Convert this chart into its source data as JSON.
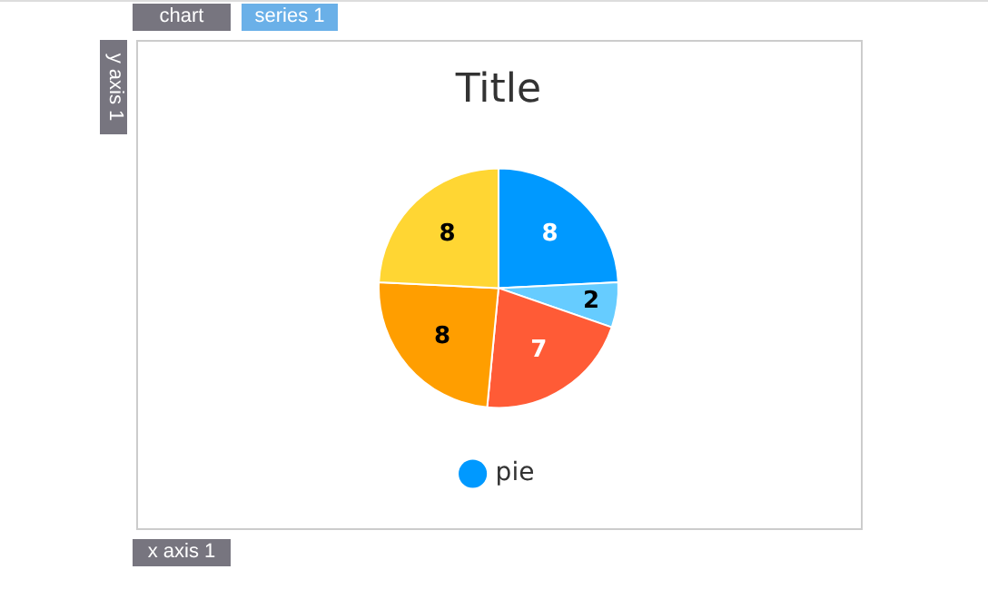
{
  "chart_data": {
    "type": "pie",
    "title": "Title",
    "categories": [
      null,
      null,
      null,
      null,
      null
    ],
    "series": [
      {
        "name": "pie",
        "color": "#0099ff",
        "values": [
          8,
          2,
          7,
          8,
          8
        ],
        "colors": [
          "#0099ff",
          "#66ccff",
          "#ff5b36",
          "#ff9e00",
          "#ffd633"
        ]
      }
    ],
    "data_labels": true,
    "legend": "bottom",
    "annotations": [
      "chart",
      "series 1",
      "y axis 1",
      "x axis 1"
    ]
  }
}
